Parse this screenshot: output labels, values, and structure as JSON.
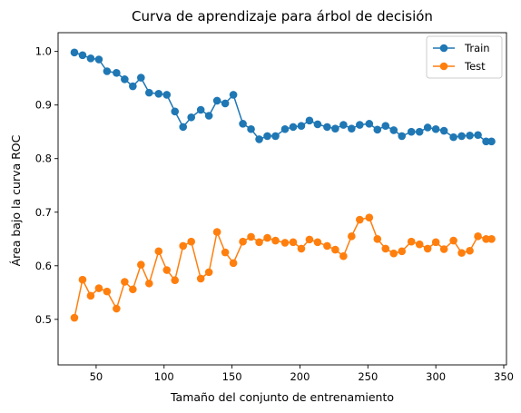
{
  "chart_data": {
    "type": "line",
    "title": "Curva de aprendizaje para árbol de decisión",
    "xlabel": "Tamaño del conjunto de entrenamiento",
    "ylabel": "Área bajo la  curva ROC",
    "xlim": [
      22,
      352
    ],
    "ylim": [
      0.415,
      1.035
    ],
    "xticks": [
      50,
      100,
      150,
      200,
      250,
      300,
      350
    ],
    "yticks": [
      0.5,
      0.6,
      0.7,
      0.8,
      0.9,
      1.0
    ],
    "xtick_labels": [
      "50",
      "100",
      "150",
      "200",
      "250",
      "300",
      "350"
    ],
    "ytick_labels": [
      "0.5",
      "0.6",
      "0.7",
      "0.8",
      "0.9",
      "1.0"
    ],
    "legend_position": "top-right",
    "grid": false,
    "x": [
      34,
      40,
      46,
      52,
      58,
      65,
      71,
      77,
      83,
      89,
      96,
      102,
      108,
      114,
      120,
      127,
      133,
      139,
      145,
      151,
      158,
      164,
      170,
      176,
      182,
      189,
      195,
      201,
      207,
      213,
      220,
      226,
      232,
      238,
      244,
      251,
      257,
      263,
      269,
      275,
      282,
      288,
      294,
      300,
      306,
      313,
      319,
      325,
      331,
      337,
      341
    ],
    "series": [
      {
        "name": "Train",
        "color": "#1f77b4",
        "values": [
          0.998,
          0.993,
          0.987,
          0.985,
          0.963,
          0.96,
          0.948,
          0.935,
          0.951,
          0.923,
          0.921,
          0.919,
          0.888,
          0.859,
          0.877,
          0.891,
          0.88,
          0.908,
          0.903,
          0.919,
          0.865,
          0.855,
          0.836,
          0.842,
          0.842,
          0.855,
          0.859,
          0.861,
          0.871,
          0.864,
          0.859,
          0.856,
          0.863,
          0.856,
          0.863,
          0.865,
          0.854,
          0.861,
          0.853,
          0.842,
          0.85,
          0.85,
          0.858,
          0.855,
          0.852,
          0.84,
          0.842,
          0.843,
          0.844,
          0.832,
          0.832
        ]
      },
      {
        "name": "Test",
        "color": "#ff7f0e",
        "values": [
          0.503,
          0.574,
          0.544,
          0.558,
          0.552,
          0.52,
          0.57,
          0.556,
          0.602,
          0.567,
          0.627,
          0.592,
          0.573,
          0.637,
          0.645,
          0.576,
          0.588,
          0.663,
          0.625,
          0.605,
          0.645,
          0.654,
          0.644,
          0.652,
          0.647,
          0.643,
          0.644,
          0.632,
          0.649,
          0.644,
          0.637,
          0.63,
          0.618,
          0.655,
          0.686,
          0.69,
          0.65,
          0.632,
          0.623,
          0.627,
          0.645,
          0.64,
          0.632,
          0.644,
          0.631,
          0.647,
          0.624,
          0.628,
          0.655,
          0.65,
          0.65
        ]
      }
    ]
  }
}
